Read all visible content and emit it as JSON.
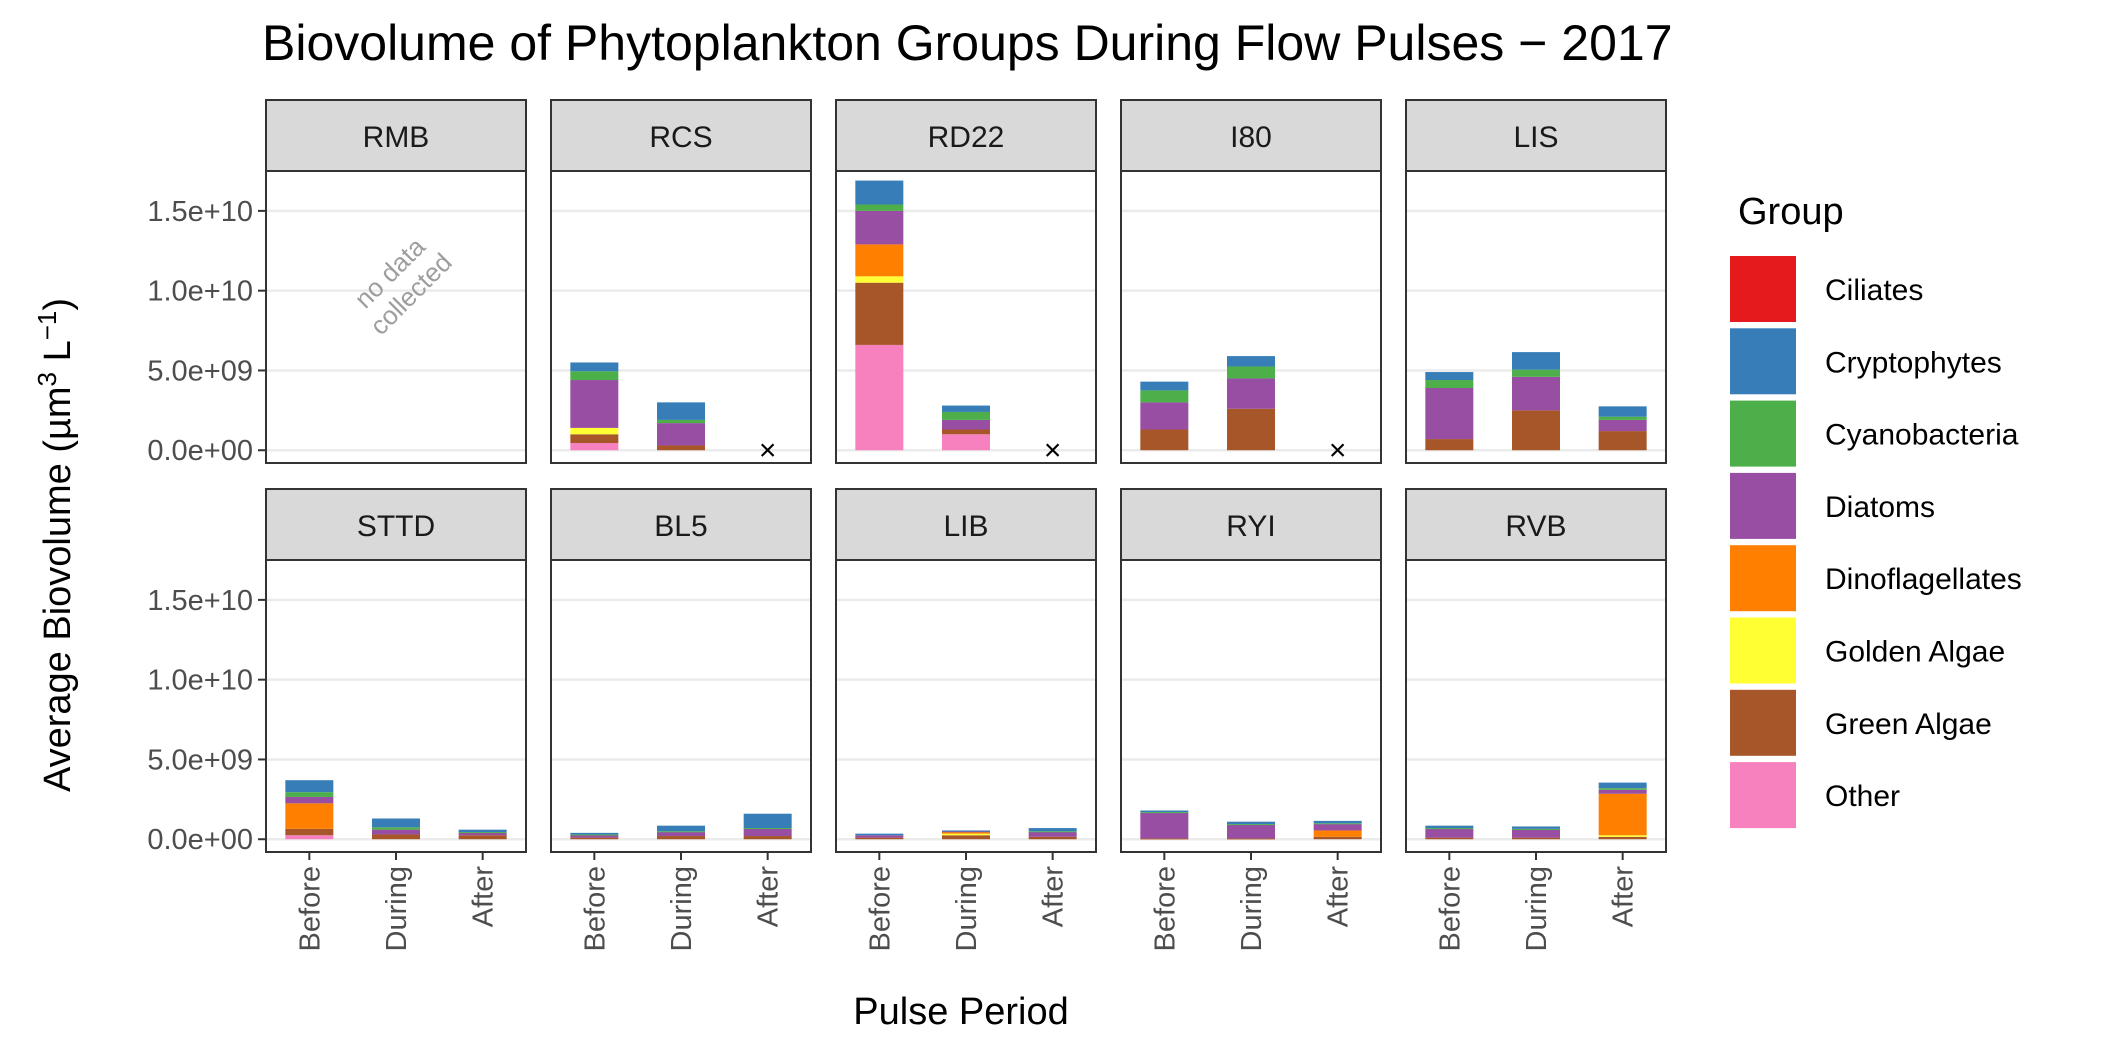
{
  "chart_data": {
    "type": "bar",
    "stacked": true,
    "faceted": true,
    "title": "Biovolume of Phytoplankton Groups During Flow Pulses − 2017",
    "xlabel": "Pulse Period",
    "ylabel_main": "Average Biovolume (µm",
    "ylabel_sup1": "3",
    "ylabel_mid": " L",
    "ylabel_sup2": "−1",
    "ylabel_end": ")",
    "ylim": [
      -800000000,
      17500000000
    ],
    "y_ticks": [
      0,
      5000000000,
      10000000000,
      15000000000
    ],
    "y_tick_labels": [
      "0.0e+00",
      "5.0e+09",
      "1.0e+10",
      "1.5e+10"
    ],
    "categories": [
      "Before",
      "During",
      "After"
    ],
    "grid": true,
    "legend_position": "right",
    "legend_title": "Group",
    "groups": [
      "Ciliates",
      "Cryptophytes",
      "Cyanobacteria",
      "Diatoms",
      "Dinoflagellates",
      "Golden Algae",
      "Green Algae",
      "Other"
    ],
    "colors": {
      "Ciliates": "#e41a1c",
      "Cryptophytes": "#377eb8",
      "Cyanobacteria": "#4daf4a",
      "Diatoms": "#984ea3",
      "Dinoflagellates": "#ff7f00",
      "Golden Algae": "#ffff33",
      "Green Algae": "#a65628",
      "Other": "#f781bf"
    },
    "no_data_text_line1": "no data",
    "no_data_text_line2": "collected",
    "missing_marker": "×",
    "panels": [
      {
        "name": "RMB",
        "no_data": true,
        "bars": [
          null,
          null,
          null
        ]
      },
      {
        "name": "RCS",
        "bars": [
          {
            "Other": 450000000,
            "Green Algae": 550000000,
            "Golden Algae": 400000000,
            "Diatoms": 3000000000,
            "Cyanobacteria": 550000000,
            "Cryptophytes": 550000000
          },
          {
            "Green Algae": 300000000,
            "Diatoms": 1400000000,
            "Cyanobacteria": 200000000,
            "Cryptophytes": 1100000000
          },
          null
        ]
      },
      {
        "name": "RD22",
        "bars": [
          {
            "Other": 6600000000,
            "Green Algae": 3900000000,
            "Golden Algae": 400000000,
            "Dinoflagellates": 2000000000,
            "Diatoms": 2100000000,
            "Cyanobacteria": 400000000,
            "Cryptophytes": 1500000000
          },
          {
            "Other": 1000000000,
            "Green Algae": 300000000,
            "Diatoms": 600000000,
            "Cyanobacteria": 500000000,
            "Cryptophytes": 400000000
          },
          null
        ]
      },
      {
        "name": "I80",
        "bars": [
          {
            "Green Algae": 1300000000,
            "Diatoms": 1700000000,
            "Cyanobacteria": 750000000,
            "Cryptophytes": 550000000
          },
          {
            "Green Algae": 2600000000,
            "Diatoms": 1900000000,
            "Cyanobacteria": 750000000,
            "Cryptophytes": 650000000
          },
          null
        ]
      },
      {
        "name": "LIS",
        "bars": [
          {
            "Green Algae": 700000000,
            "Diatoms": 3200000000,
            "Cyanobacteria": 500000000,
            "Cryptophytes": 500000000
          },
          {
            "Green Algae": 2500000000,
            "Diatoms": 2100000000,
            "Cyanobacteria": 450000000,
            "Cryptophytes": 1100000000
          },
          {
            "Green Algae": 1200000000,
            "Diatoms": 700000000,
            "Cyanobacteria": 200000000,
            "Cryptophytes": 650000000
          }
        ]
      },
      {
        "name": "STTD",
        "bars": [
          {
            "Other": 250000000,
            "Green Algae": 400000000,
            "Dinoflagellates": 1600000000,
            "Diatoms": 400000000,
            "Cyanobacteria": 300000000,
            "Cryptophytes": 750000000
          },
          {
            "Green Algae": 300000000,
            "Diatoms": 300000000,
            "Cyanobacteria": 150000000,
            "Cryptophytes": 550000000
          },
          {
            "Green Algae": 250000000,
            "Diatoms": 150000000,
            "Cyanobacteria": 50000000,
            "Cryptophytes": 150000000
          }
        ]
      },
      {
        "name": "BL5",
        "bars": [
          {
            "Green Algae": 100000000,
            "Diatoms": 150000000,
            "Cyanobacteria": 50000000,
            "Cryptophytes": 100000000
          },
          {
            "Green Algae": 200000000,
            "Diatoms": 250000000,
            "Cyanobacteria": 50000000,
            "Cryptophytes": 350000000
          },
          {
            "Green Algae": 200000000,
            "Diatoms": 450000000,
            "Cyanobacteria": 50000000,
            "Cryptophytes": 900000000
          }
        ]
      },
      {
        "name": "LIB",
        "bars": [
          {
            "Green Algae": 100000000,
            "Diatoms": 150000000,
            "Cryptophytes": 100000000
          },
          {
            "Green Algae": 250000000,
            "Golden Algae": 100000000,
            "Dinoflagellates": 100000000,
            "Diatoms": 50000000,
            "Cryptophytes": 50000000
          },
          {
            "Green Algae": 150000000,
            "Diatoms": 300000000,
            "Cyanobacteria": 50000000,
            "Cryptophytes": 200000000
          }
        ]
      },
      {
        "name": "RYI",
        "bars": [
          {
            "Green Algae": 50000000,
            "Diatoms": 1600000000,
            "Cyanobacteria": 50000000,
            "Cryptophytes": 100000000
          },
          {
            "Green Algae": 50000000,
            "Diatoms": 850000000,
            "Cyanobacteria": 50000000,
            "Cryptophytes": 150000000
          },
          {
            "Green Algae": 150000000,
            "Dinoflagellates": 400000000,
            "Diatoms": 400000000,
            "Cyanobacteria": 50000000,
            "Cryptophytes": 150000000
          }
        ]
      },
      {
        "name": "RVB",
        "bars": [
          {
            "Green Algae": 100000000,
            "Diatoms": 550000000,
            "Cyanobacteria": 50000000,
            "Cryptophytes": 150000000
          },
          {
            "Green Algae": 100000000,
            "Diatoms": 500000000,
            "Cyanobacteria": 50000000,
            "Cryptophytes": 150000000
          },
          {
            "Green Algae": 150000000,
            "Golden Algae": 100000000,
            "Dinoflagellates": 2600000000,
            "Diatoms": 250000000,
            "Cyanobacteria": 100000000,
            "Cryptophytes": 350000000
          }
        ]
      }
    ]
  }
}
